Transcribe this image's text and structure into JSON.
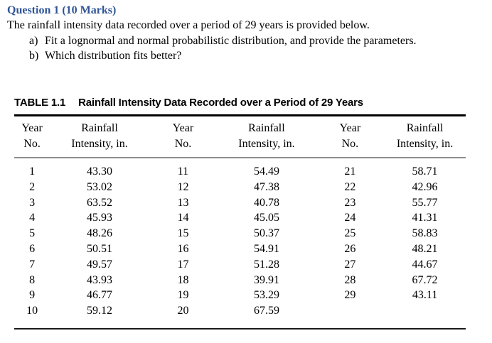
{
  "question": {
    "title": "Question 1 (10 Marks)",
    "title_color": "#2F5496",
    "intro": "The rainfall intensity data recorded over a period of 29 years is provided below.",
    "items": [
      {
        "marker": "a)",
        "text": "Fit a lognormal and normal probabilistic distribution, and provide the parameters."
      },
      {
        "marker": "b)",
        "text": "Which distribution fits better?"
      }
    ]
  },
  "table": {
    "label": "TABLE 1.1",
    "title": "Rainfall Intensity Data Recorded over a Period of 29 Years",
    "column_headers": [
      {
        "line1": "Year",
        "line2": "No."
      },
      {
        "line1": "Rainfall",
        "line2": "Intensity, in."
      },
      {
        "line1": "Year",
        "line2": "No."
      },
      {
        "line1": "Rainfall",
        "line2": "Intensity, in."
      },
      {
        "line1": "Year",
        "line2": "No."
      },
      {
        "line1": "Rainfall",
        "line2": "Intensity, in."
      }
    ],
    "rows": [
      [
        "1",
        "43.30",
        "11",
        "54.49",
        "21",
        "58.71"
      ],
      [
        "2",
        "53.02",
        "12",
        "47.38",
        "22",
        "42.96"
      ],
      [
        "3",
        "63.52",
        "13",
        "40.78",
        "23",
        "55.77"
      ],
      [
        "4",
        "45.93",
        "14",
        "45.05",
        "24",
        "41.31"
      ],
      [
        "5",
        "48.26",
        "15",
        "50.37",
        "25",
        "58.83"
      ],
      [
        "6",
        "50.51",
        "16",
        "54.91",
        "26",
        "48.21"
      ],
      [
        "7",
        "49.57",
        "17",
        "51.28",
        "27",
        "44.67"
      ],
      [
        "8",
        "43.93",
        "18",
        "39.91",
        "28",
        "67.72"
      ],
      [
        "9",
        "46.77",
        "19",
        "53.29",
        "29",
        "43.11"
      ],
      [
        "10",
        "59.12",
        "20",
        "67.59",
        "",
        ""
      ]
    ]
  }
}
